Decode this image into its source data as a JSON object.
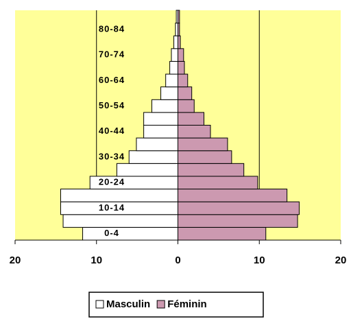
{
  "chart_data": {
    "type": "pyramid",
    "categories": [
      "0-4",
      null,
      "10-14",
      null,
      "20-24",
      null,
      "30-34",
      null,
      "40-44",
      null,
      "50-54",
      null,
      "60-64",
      null,
      "70-74",
      null,
      "80-84",
      null
    ],
    "series": [
      {
        "name": "Masculin",
        "color": "#ffffff",
        "side": "left",
        "values": [
          11.7,
          14.1,
          14.4,
          14.4,
          10.8,
          7.5,
          6.0,
          5.1,
          4.2,
          4.2,
          3.2,
          2.1,
          1.5,
          1.0,
          0.8,
          0.5,
          0.3,
          0.2
        ]
      },
      {
        "name": "Féminin",
        "color": "#cc99b0",
        "side": "right",
        "values": [
          10.8,
          14.7,
          14.9,
          13.4,
          9.8,
          8.1,
          6.6,
          6.1,
          4.0,
          3.2,
          2.0,
          1.7,
          1.2,
          0.8,
          0.7,
          0.3,
          0.2,
          0.2
        ]
      }
    ],
    "xlim": [
      -20,
      20
    ],
    "xticks": [
      {
        "value": -20,
        "label": "20"
      },
      {
        "value": -10,
        "label": "10"
      },
      0,
      10,
      20
    ],
    "grid": true
  }
}
